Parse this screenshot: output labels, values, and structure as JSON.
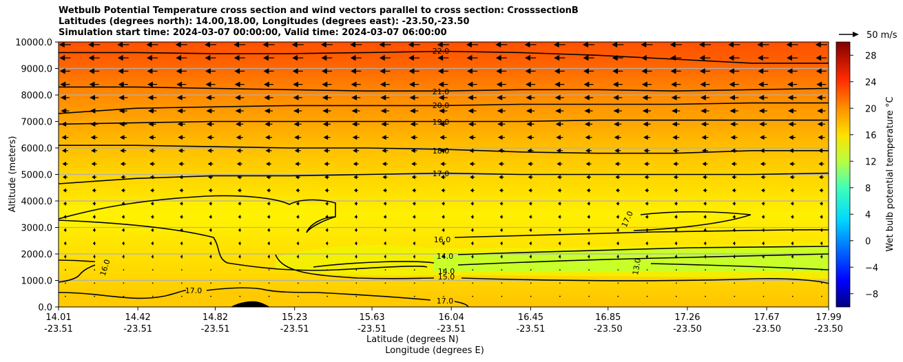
{
  "chart_data": {
    "type": "heatmap",
    "title_lines": [
      "Wetbulb Potential Temperature cross section and wind vectors parallel to cross section: CrosssectionB",
      "Latitudes (degrees north): 14.00,18.00, Longitudes (degrees east): -23.50,-23.50",
      "Simulation start time: 2024-03-07 00:00:00, Valid time: 2024-03-07 06:00:00"
    ],
    "xlabel_lat": "Latitude (degrees N)",
    "xlabel_lon": "Longitude (degrees E)",
    "ylabel": "Altitude (meters)",
    "xlim": [
      14.01,
      17.99
    ],
    "ylim": [
      0,
      10000
    ],
    "x_ticks": [
      {
        "lat": "14.01",
        "lon": "-23.51"
      },
      {
        "lat": "14.42",
        "lon": "-23.51"
      },
      {
        "lat": "14.82",
        "lon": "-23.51"
      },
      {
        "lat": "15.23",
        "lon": "-23.51"
      },
      {
        "lat": "15.63",
        "lon": "-23.51"
      },
      {
        "lat": "16.04",
        "lon": "-23.51"
      },
      {
        "lat": "16.45",
        "lon": "-23.51"
      },
      {
        "lat": "16.85",
        "lon": "-23.50"
      },
      {
        "lat": "17.26",
        "lon": "-23.50"
      },
      {
        "lat": "17.67",
        "lon": "-23.50"
      },
      {
        "lat": "17.99",
        "lon": "-23.50"
      }
    ],
    "y_ticks": [
      "0.0",
      "1000.0",
      "2000.0",
      "3000.0",
      "4000.0",
      "5000.0",
      "6000.0",
      "7000.0",
      "8000.0",
      "9000.0",
      "10000.0"
    ],
    "colorbar": {
      "label": "Wet bulb potential temperature $^\\circ$C",
      "label_text": "Wet bulb potential temperature °C",
      "range": [
        -10,
        30
      ],
      "ticks": [
        "−8",
        "−4",
        "0",
        "4",
        "8",
        "12",
        "16",
        "20",
        "24",
        "28"
      ]
    },
    "quiver_key": "50 m/s",
    "contour_labels": [
      "22.0",
      "21.0",
      "20.0",
      "19.0",
      "18.0",
      "17.0",
      "16.0",
      "14.0",
      "14.0",
      "15.0",
      "17.0",
      "17.0",
      "16.0",
      "17.0",
      "13.0"
    ],
    "contours": [
      {
        "level": 22,
        "alt": [
          9600,
          9600,
          9560,
          9560,
          9600,
          9650,
          9600,
          9500,
          9350,
          9200,
          9200
        ]
      },
      {
        "level": 21,
        "alt": [
          8300,
          8300,
          8250,
          8200,
          8150,
          8150,
          8200,
          8200,
          8150,
          8200,
          8250
        ]
      },
      {
        "level": 20,
        "alt": [
          7300,
          7500,
          7550,
          7600,
          7600,
          7600,
          7650,
          7650,
          7650,
          7700,
          7700
        ]
      },
      {
        "level": 19,
        "alt": [
          6900,
          6950,
          7000,
          7000,
          7000,
          7000,
          7000,
          7050,
          7050,
          7050,
          7050
        ]
      },
      {
        "level": 18,
        "alt": [
          6100,
          6100,
          6050,
          6000,
          6000,
          5950,
          5850,
          5800,
          5800,
          5900,
          5900
        ]
      },
      {
        "level": 17,
        "alt": [
          4650,
          4850,
          4950,
          4950,
          5000,
          5050,
          5000,
          5000,
          5000,
          5000,
          5050
        ]
      }
    ],
    "colors": {
      "cmap": [
        "#000080",
        "#0000ff",
        "#0080ff",
        "#00ffff",
        "#80ff80",
        "#ffff00",
        "#ff8000",
        "#ff0000",
        "#800000"
      ]
    }
  }
}
